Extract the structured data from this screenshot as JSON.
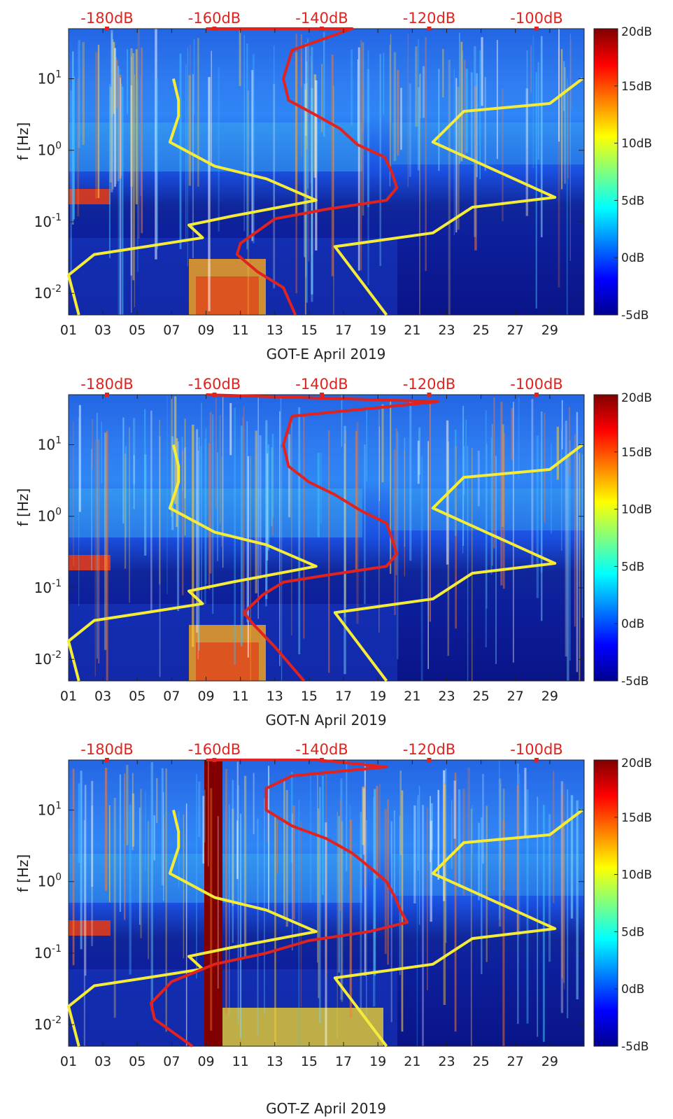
{
  "chart_data": [
    {
      "type": "heatmap",
      "xlabel": "GOT-E April 2019",
      "ylabel": "f [Hz]",
      "x_ticks": [
        "01",
        "03",
        "05",
        "07",
        "09",
        "11",
        "13",
        "15",
        "17",
        "19",
        "21",
        "23",
        "25",
        "27",
        "29"
      ],
      "xlim": [
        1,
        31
      ],
      "y_scale": "log",
      "ylim": [
        0.005,
        50
      ],
      "y_ticks": [
        {
          "base": "10",
          "exp": "1"
        },
        {
          "base": "10",
          "exp": "0"
        },
        {
          "base": "10",
          "exp": "-1"
        },
        {
          "base": "10",
          "exp": "-2"
        }
      ],
      "top_axis_labels": [
        "-180dB",
        "-160dB",
        "-140dB",
        "-120dB",
        "-100dB"
      ],
      "top_axis_color": "#e0231e",
      "colorbar": {
        "labels": [
          "20dB",
          "15dB",
          "10dB",
          "5dB",
          "0dB",
          "-5dB"
        ],
        "range": [
          -5,
          20
        ]
      },
      "overlay_curves": [
        {
          "color": "#f5ec3a",
          "points": [
            [
              7.1,
              10
            ],
            [
              7.4,
              5
            ],
            [
              7.4,
              3
            ],
            [
              6.9,
              1.3
            ],
            [
              9.5,
              0.6
            ],
            [
              12.5,
              0.4
            ],
            [
              15.4,
              0.2
            ],
            [
              10.5,
              0.12
            ],
            [
              8.0,
              0.09
            ],
            [
              8.8,
              0.06
            ],
            [
              5.5,
              0.045
            ],
            [
              2.5,
              0.035
            ],
            [
              1.0,
              0.018
            ],
            [
              1.6,
              0.005
            ]
          ]
        },
        {
          "color": "#f5ec3a",
          "points": [
            [
              30.9,
              10
            ],
            [
              29.0,
              4.5
            ],
            [
              24.0,
              3.5
            ],
            [
              22.2,
              1.3
            ],
            [
              29.3,
              0.22
            ],
            [
              24.5,
              0.16
            ],
            [
              22.2,
              0.07
            ],
            [
              16.5,
              0.045
            ],
            [
              19.5,
              0.005
            ]
          ]
        },
        {
          "color": "#e0231e",
          "points": [
            [
              9.0,
              50
            ],
            [
              17.5,
              50
            ],
            [
              14.0,
              25
            ],
            [
              13.5,
              10
            ],
            [
              13.8,
              5
            ],
            [
              15.5,
              3
            ],
            [
              16.8,
              2
            ],
            [
              17.8,
              1.2
            ],
            [
              19.4,
              0.8
            ],
            [
              19.8,
              0.5
            ],
            [
              20.1,
              0.3
            ],
            [
              19.5,
              0.2
            ],
            [
              16.0,
              0.15
            ],
            [
              13.0,
              0.11
            ],
            [
              12.2,
              0.08
            ],
            [
              11.0,
              0.05
            ],
            [
              10.8,
              0.035
            ],
            [
              12.0,
              0.02
            ],
            [
              13.5,
              0.012
            ],
            [
              14.2,
              0.005
            ]
          ]
        }
      ]
    },
    {
      "type": "heatmap",
      "xlabel": "GOT-N April 2019",
      "ylabel": "f [Hz]",
      "x_ticks": [
        "01",
        "03",
        "05",
        "07",
        "09",
        "11",
        "13",
        "15",
        "17",
        "19",
        "21",
        "23",
        "25",
        "27",
        "29"
      ],
      "xlim": [
        1,
        31
      ],
      "y_scale": "log",
      "ylim": [
        0.005,
        50
      ],
      "y_ticks": [
        {
          "base": "10",
          "exp": "1"
        },
        {
          "base": "10",
          "exp": "0"
        },
        {
          "base": "10",
          "exp": "-1"
        },
        {
          "base": "10",
          "exp": "-2"
        }
      ],
      "top_axis_labels": [
        "-180dB",
        "-160dB",
        "-140dB",
        "-120dB",
        "-100dB"
      ],
      "top_axis_color": "#e0231e",
      "colorbar": {
        "labels": [
          "20dB",
          "15dB",
          "10dB",
          "5dB",
          "0dB",
          "-5dB"
        ],
        "range": [
          -5,
          20
        ]
      },
      "overlay_curves": [
        {
          "color": "#f5ec3a",
          "points": [
            [
              7.1,
              10
            ],
            [
              7.4,
              5
            ],
            [
              7.4,
              3
            ],
            [
              6.9,
              1.3
            ],
            [
              9.5,
              0.6
            ],
            [
              12.5,
              0.4
            ],
            [
              15.4,
              0.2
            ],
            [
              10.5,
              0.12
            ],
            [
              8.0,
              0.09
            ],
            [
              8.8,
              0.06
            ],
            [
              5.5,
              0.045
            ],
            [
              2.5,
              0.035
            ],
            [
              1.0,
              0.018
            ],
            [
              1.6,
              0.005
            ]
          ]
        },
        {
          "color": "#f5ec3a",
          "points": [
            [
              30.9,
              10
            ],
            [
              29.0,
              4.5
            ],
            [
              24.0,
              3.5
            ],
            [
              22.2,
              1.3
            ],
            [
              29.3,
              0.22
            ],
            [
              24.5,
              0.16
            ],
            [
              22.2,
              0.07
            ],
            [
              16.5,
              0.045
            ],
            [
              19.5,
              0.005
            ]
          ]
        },
        {
          "color": "#e0231e",
          "points": [
            [
              9.0,
              50
            ],
            [
              22.5,
              40
            ],
            [
              14.0,
              25
            ],
            [
              13.5,
              10
            ],
            [
              13.8,
              5
            ],
            [
              15.0,
              3
            ],
            [
              16.5,
              2
            ],
            [
              18.0,
              1.2
            ],
            [
              19.5,
              0.8
            ],
            [
              19.8,
              0.5
            ],
            [
              20.1,
              0.3
            ],
            [
              19.5,
              0.2
            ],
            [
              16.0,
              0.15
            ],
            [
              13.5,
              0.12
            ],
            [
              12.3,
              0.08
            ],
            [
              11.2,
              0.045
            ],
            [
              11.8,
              0.03
            ],
            [
              13.0,
              0.015
            ],
            [
              14.7,
              0.005
            ]
          ]
        }
      ]
    },
    {
      "type": "heatmap",
      "xlabel": "GOT-Z April 2019",
      "ylabel": "f [Hz]",
      "x_ticks": [
        "01",
        "03",
        "05",
        "07",
        "09",
        "11",
        "13",
        "15",
        "17",
        "19",
        "21",
        "23",
        "25",
        "27",
        "29"
      ],
      "xlim": [
        1,
        31
      ],
      "y_scale": "log",
      "ylim": [
        0.005,
        50
      ],
      "y_ticks": [
        {
          "base": "10",
          "exp": "1"
        },
        {
          "base": "10",
          "exp": "0"
        },
        {
          "base": "10",
          "exp": "-1"
        },
        {
          "base": "10",
          "exp": "-2"
        }
      ],
      "top_axis_labels": [
        "-180dB",
        "-160dB",
        "-140dB",
        "-120dB",
        "-100dB"
      ],
      "top_axis_color": "#e0231e",
      "colorbar": {
        "labels": [
          "20dB",
          "15dB",
          "10dB",
          "5dB",
          "0dB",
          "-5dB"
        ],
        "range": [
          -5,
          20
        ]
      },
      "overlay_curves": [
        {
          "color": "#f5ec3a",
          "points": [
            [
              7.1,
              10
            ],
            [
              7.4,
              5
            ],
            [
              7.4,
              3
            ],
            [
              6.9,
              1.3
            ],
            [
              9.5,
              0.6
            ],
            [
              12.5,
              0.4
            ],
            [
              15.4,
              0.2
            ],
            [
              10.5,
              0.12
            ],
            [
              8.0,
              0.09
            ],
            [
              8.8,
              0.06
            ],
            [
              5.5,
              0.045
            ],
            [
              2.5,
              0.035
            ],
            [
              1.0,
              0.018
            ],
            [
              1.6,
              0.005
            ]
          ]
        },
        {
          "color": "#f5ec3a",
          "points": [
            [
              30.9,
              10
            ],
            [
              29.0,
              4.5
            ],
            [
              24.0,
              3.5
            ],
            [
              22.2,
              1.3
            ],
            [
              29.3,
              0.22
            ],
            [
              24.5,
              0.16
            ],
            [
              22.2,
              0.07
            ],
            [
              16.5,
              0.045
            ],
            [
              19.5,
              0.005
            ]
          ]
        },
        {
          "color": "#e0231e",
          "points": [
            [
              9.0,
              50
            ],
            [
              15.5,
              50
            ],
            [
              19.5,
              40
            ],
            [
              14.0,
              30
            ],
            [
              12.5,
              20
            ],
            [
              12.5,
              10
            ],
            [
              14.0,
              6
            ],
            [
              16.0,
              4
            ],
            [
              17.5,
              2.5
            ],
            [
              18.5,
              1.6
            ],
            [
              19.5,
              1.0
            ],
            [
              20.0,
              0.6
            ],
            [
              20.3,
              0.4
            ],
            [
              20.7,
              0.27
            ],
            [
              18.5,
              0.2
            ],
            [
              15.0,
              0.15
            ],
            [
              12.5,
              0.1
            ],
            [
              9.5,
              0.07
            ],
            [
              7.0,
              0.04
            ],
            [
              5.8,
              0.02
            ],
            [
              6.0,
              0.012
            ],
            [
              8.2,
              0.005
            ]
          ]
        }
      ]
    }
  ]
}
